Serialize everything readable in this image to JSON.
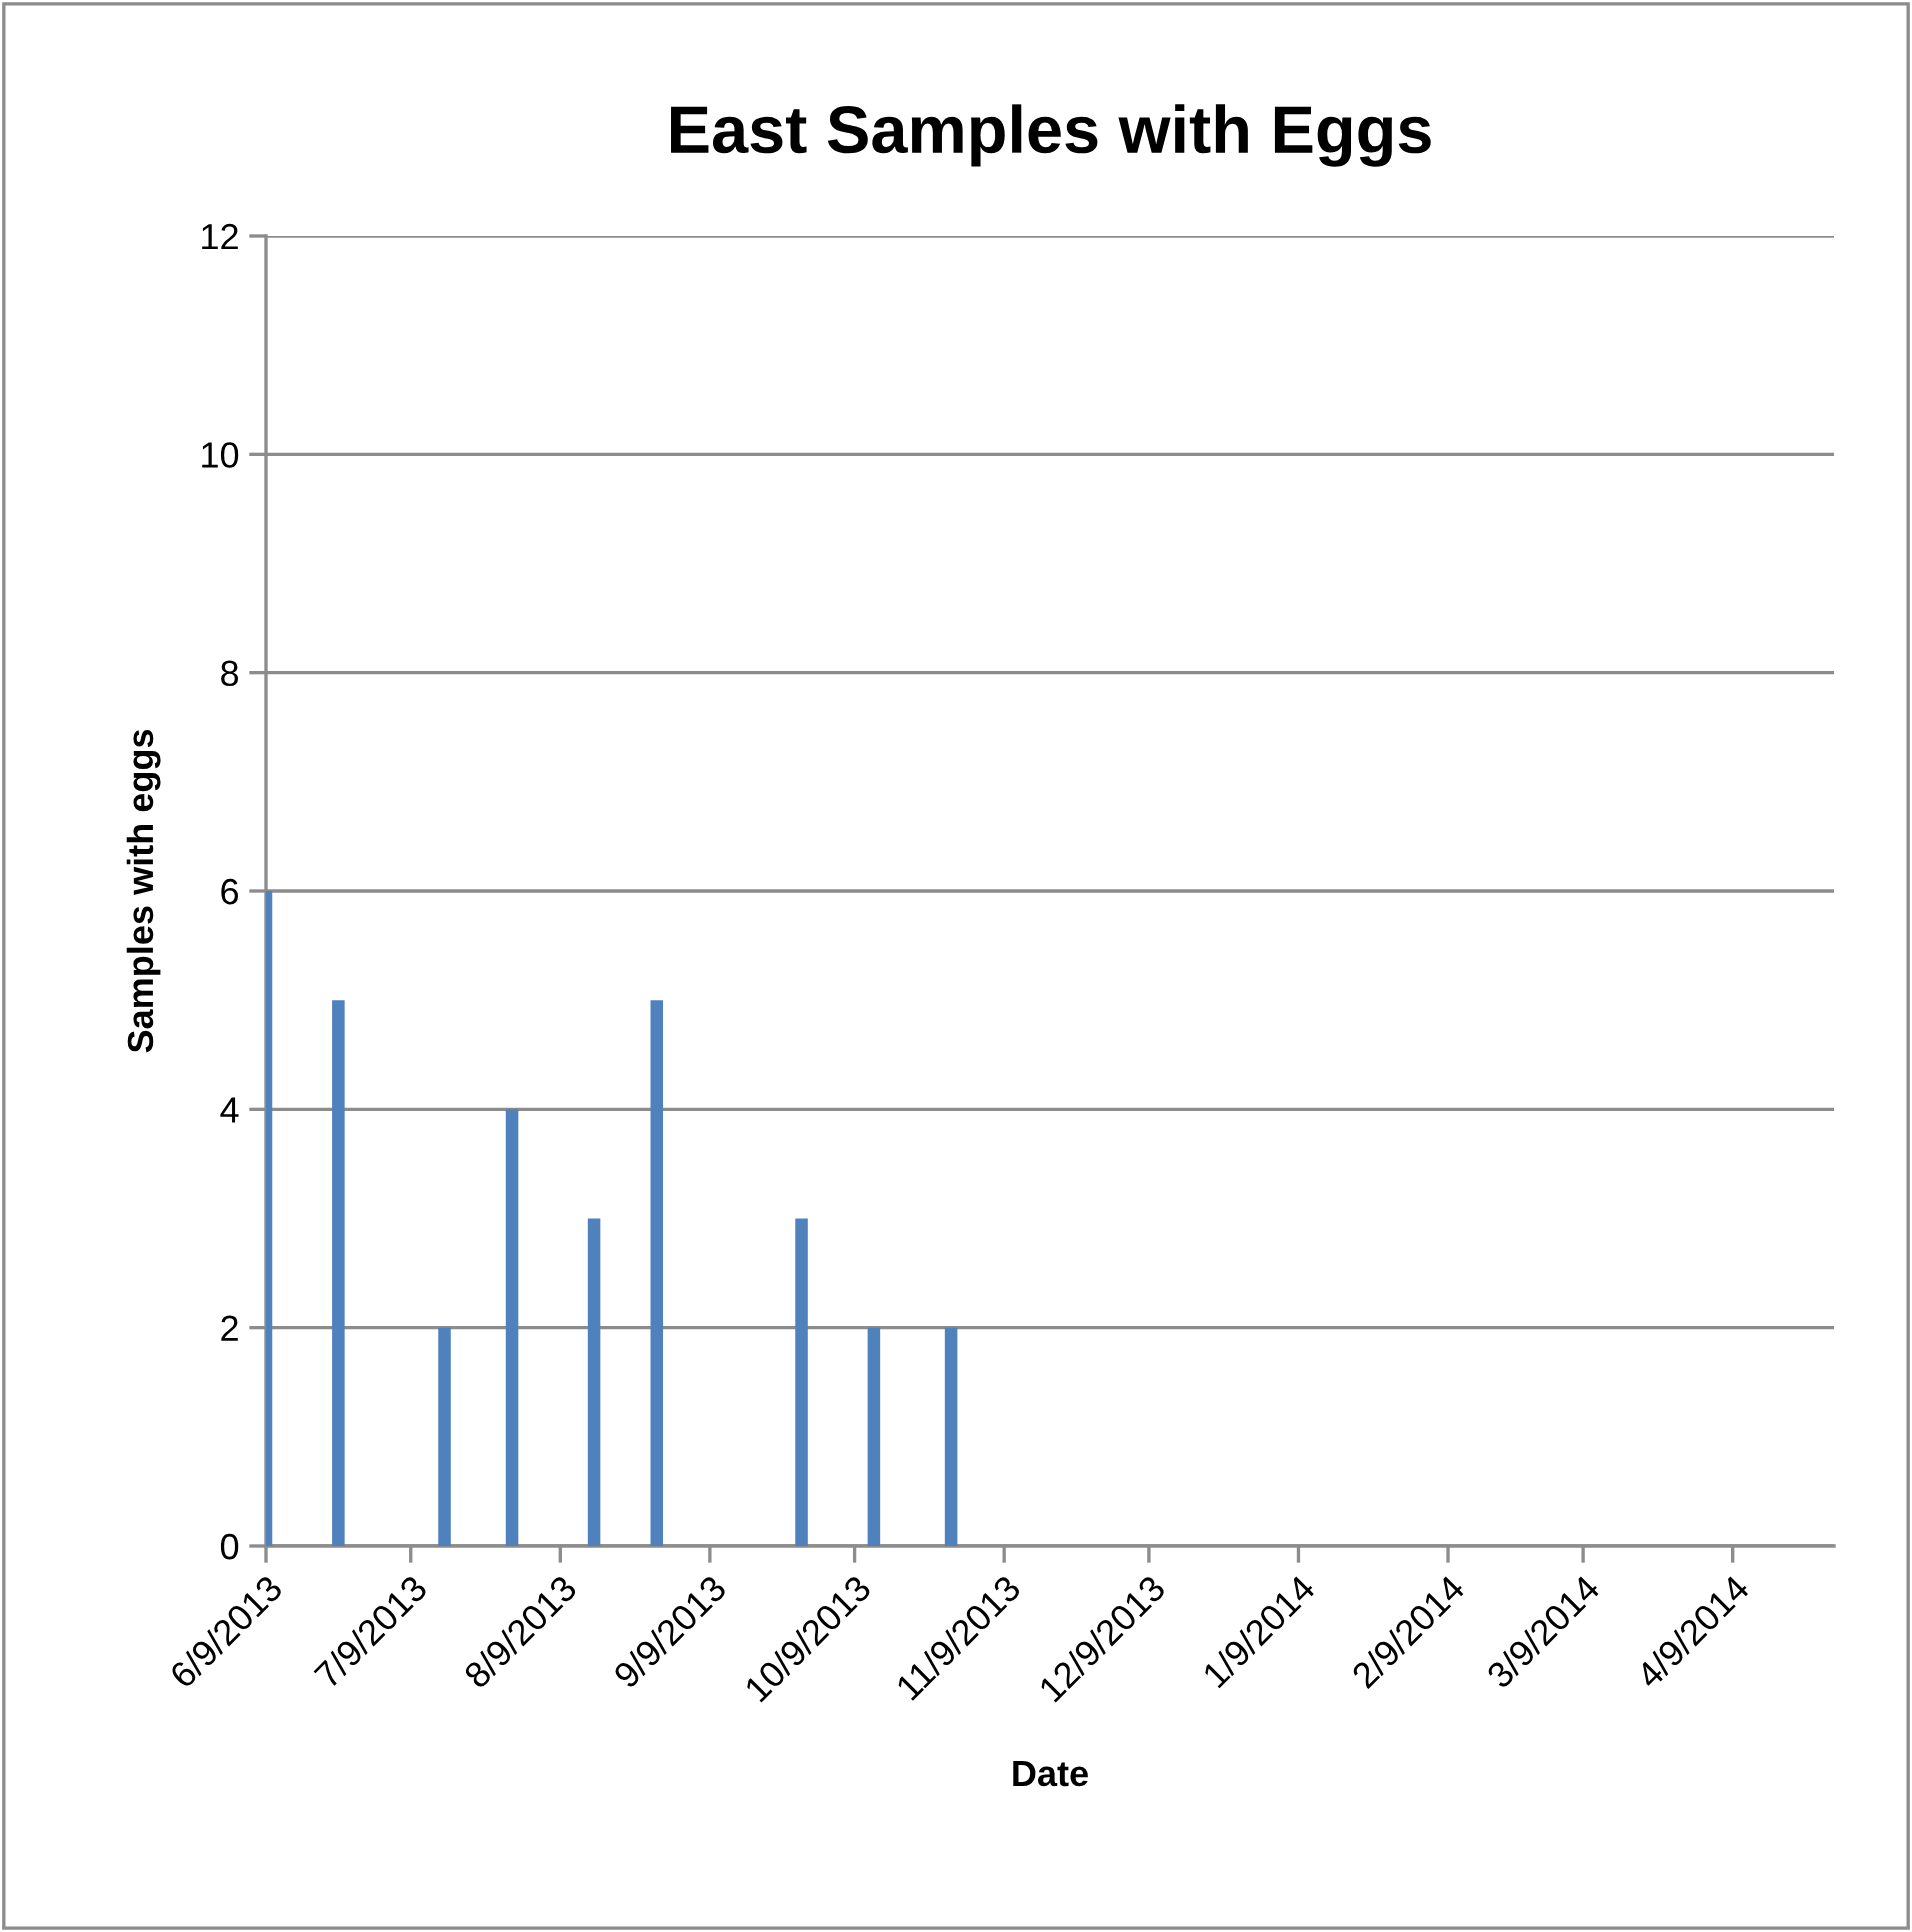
{
  "chart_data": {
    "type": "bar",
    "title": "East Samples with Eggs",
    "xlabel": "Date",
    "ylabel": "Samples with eggs",
    "x": [
      "2013-06-09",
      "2013-06-24",
      "2013-07-16",
      "2013-07-30",
      "2013-08-16",
      "2013-08-29",
      "2013-09-28",
      "2013-10-13",
      "2013-10-29"
    ],
    "series": [
      {
        "color": "#4f81bd",
        "values": [
          6,
          5,
          2,
          4,
          3,
          5,
          3,
          2,
          2
        ]
      }
    ],
    "xlim": [
      "2013-06-09",
      "2014-04-30"
    ],
    "xticks": [
      {
        "value": "2013-06-09",
        "label": "6/9/2013"
      },
      {
        "value": "2013-07-09",
        "label": "7/9/2013"
      },
      {
        "value": "2013-08-09",
        "label": "8/9/2013"
      },
      {
        "value": "2013-09-09",
        "label": "9/9/2013"
      },
      {
        "value": "2013-10-09",
        "label": "10/9/2013"
      },
      {
        "value": "2013-11-09",
        "label": "11/9/2013"
      },
      {
        "value": "2013-12-09",
        "label": "12/9/2013"
      },
      {
        "value": "2014-01-09",
        "label": "1/9/2014"
      },
      {
        "value": "2014-02-09",
        "label": "2/9/2014"
      },
      {
        "value": "2014-03-09",
        "label": "3/9/2014"
      },
      {
        "value": "2014-04-09",
        "label": "4/9/2014"
      }
    ],
    "ylim": [
      0,
      12
    ],
    "yticks": [
      0,
      2,
      4,
      6,
      8,
      10,
      12
    ],
    "grid": "y"
  }
}
